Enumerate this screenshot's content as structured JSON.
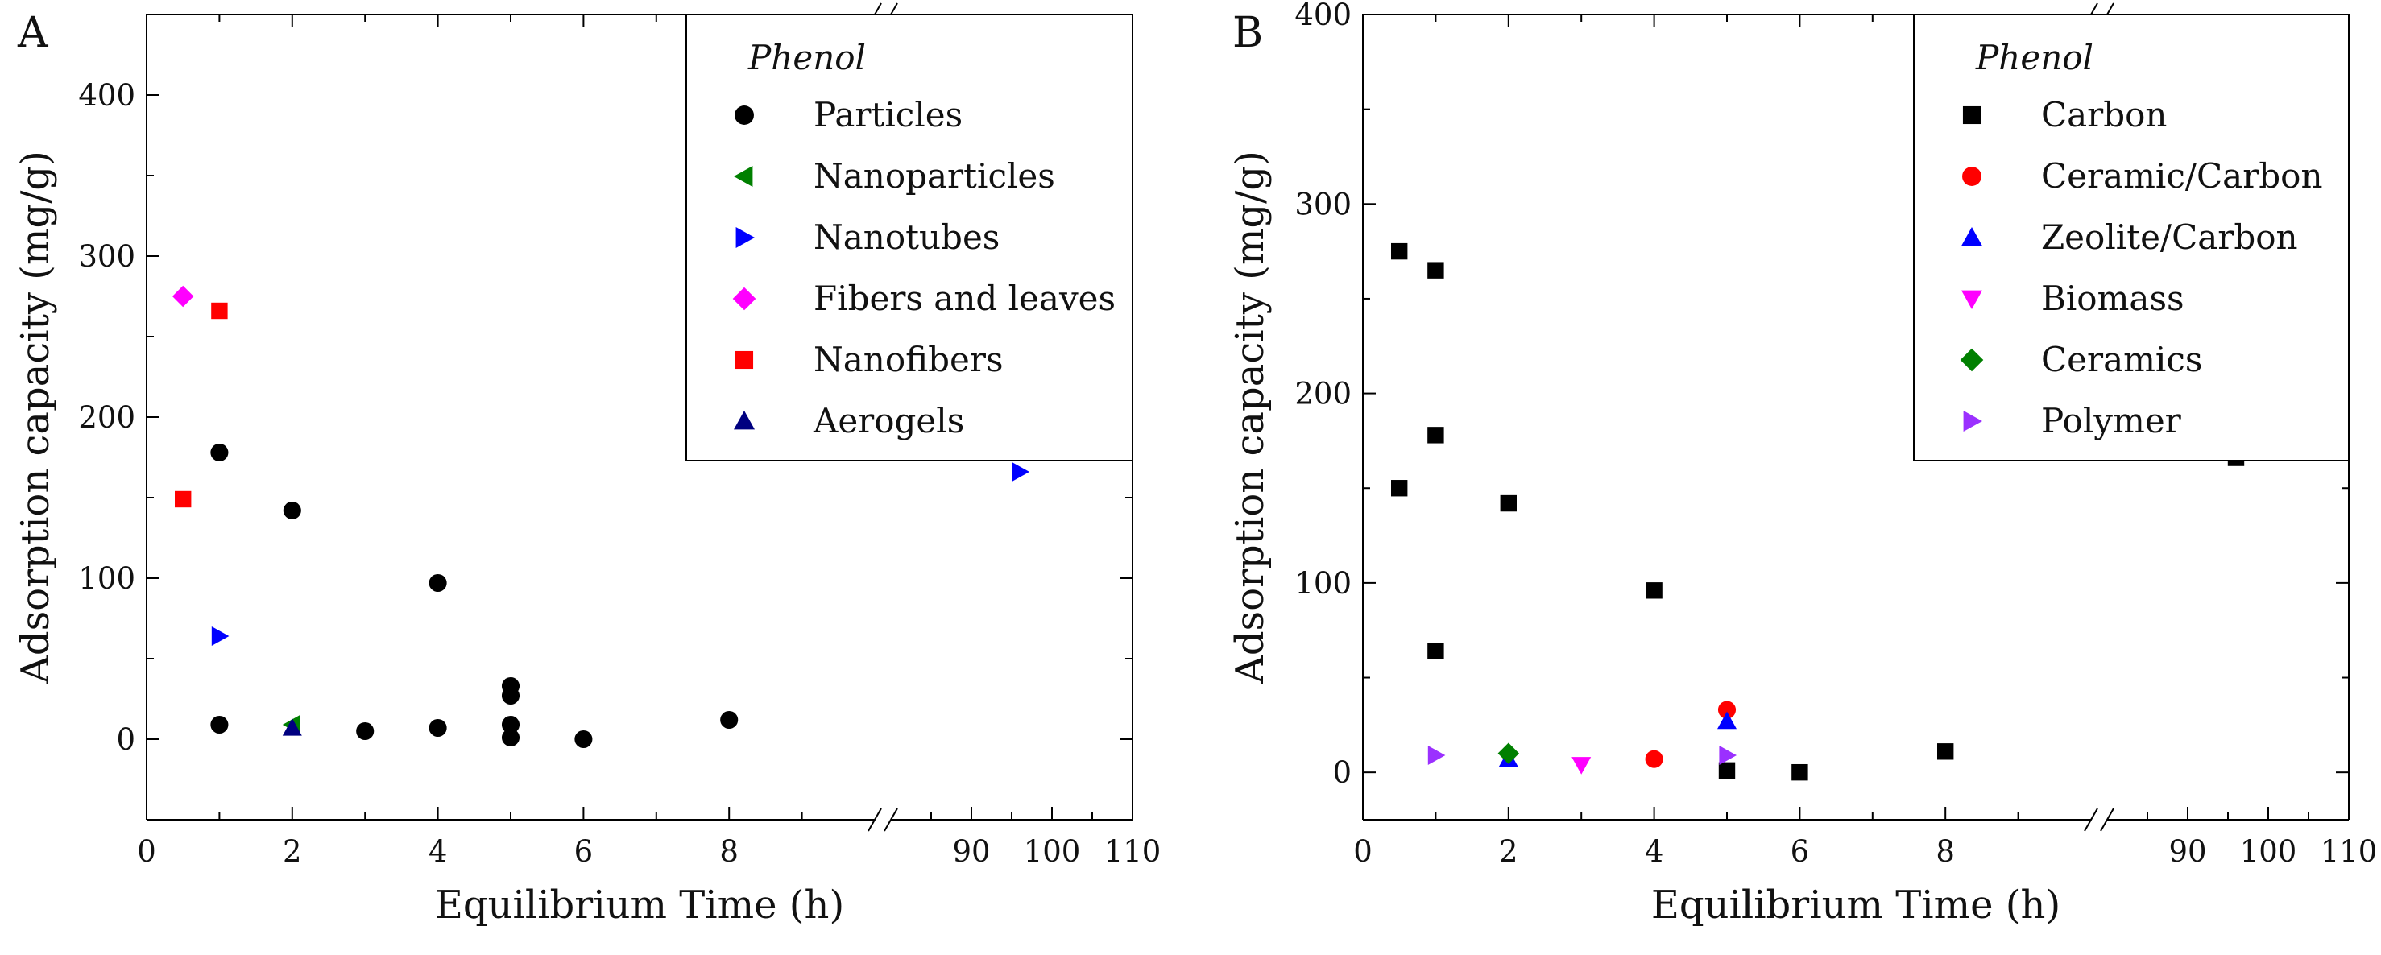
{
  "chart_data": [
    {
      "panel_label": "A",
      "type": "scatter",
      "xlabel": "Equilibrium Time (h)",
      "ylabel": "Adsorption capacity (mg/g)",
      "xlim_segment1": [
        0,
        10
      ],
      "xlim_segment2": [
        80,
        110
      ],
      "ylim": [
        -50,
        450
      ],
      "xticks_segment1": [
        "0",
        "2",
        "4",
        "6",
        "8"
      ],
      "xticks_segment2": [
        "90",
        "100",
        "110"
      ],
      "yticks": [
        "0",
        "100",
        "200",
        "300",
        "400"
      ],
      "legend_title": "Phenol",
      "legend_position": "top-right",
      "series": [
        {
          "name": "Particles",
          "marker": "circle",
          "color": "#000000",
          "points": [
            [
              1,
              178
            ],
            [
              2,
              142
            ],
            [
              4,
              97
            ],
            [
              1,
              9
            ],
            [
              3,
              5
            ],
            [
              4,
              7
            ],
            [
              5,
              33
            ],
            [
              5,
              27
            ],
            [
              5,
              9
            ],
            [
              5,
              1
            ],
            [
              6,
              0
            ],
            [
              8,
              12
            ]
          ]
        },
        {
          "name": "Nanoparticles",
          "marker": "triangle-left",
          "color": "#008000",
          "points": [
            [
              2,
              9
            ]
          ]
        },
        {
          "name": "Nanotubes",
          "marker": "triangle-right",
          "color": "#0000ff",
          "points": [
            [
              1,
              64
            ],
            [
              96,
              166
            ]
          ]
        },
        {
          "name": "Fibers and leaves",
          "marker": "diamond",
          "color": "#ff00ff",
          "points": [
            [
              0.5,
              275
            ]
          ]
        },
        {
          "name": "Nanofibers",
          "marker": "square",
          "color": "#ff0000",
          "points": [
            [
              1,
              266
            ],
            [
              0.5,
              149
            ]
          ]
        },
        {
          "name": "Aerogels",
          "marker": "triangle-up",
          "color": "#000080",
          "points": [
            [
              2,
              7
            ]
          ]
        }
      ]
    },
    {
      "panel_label": "B",
      "type": "scatter",
      "xlabel": "Equilibrium Time (h)",
      "ylabel": "Adsorption capacity (mg/g)",
      "xlim_segment1": [
        0,
        10
      ],
      "xlim_segment2": [
        80,
        110
      ],
      "ylim": [
        -25,
        400
      ],
      "xticks_segment1": [
        "0",
        "2",
        "4",
        "6",
        "8"
      ],
      "xticks_segment2": [
        "90",
        "100",
        "110"
      ],
      "yticks": [
        "0",
        "100",
        "200",
        "300",
        "400"
      ],
      "legend_title": "Phenol",
      "legend_position": "top-right",
      "series": [
        {
          "name": "Carbon",
          "marker": "square",
          "color": "#000000",
          "points": [
            [
              0.5,
              275
            ],
            [
              1,
              265
            ],
            [
              1,
              178
            ],
            [
              0.5,
              150
            ],
            [
              2,
              142
            ],
            [
              4,
              96
            ],
            [
              1,
              64
            ],
            [
              5,
              1
            ],
            [
              6,
              0
            ],
            [
              8,
              11
            ],
            [
              96,
              166
            ]
          ]
        },
        {
          "name": "Ceramic/Carbon",
          "marker": "circle",
          "color": "#ff0000",
          "points": [
            [
              5,
              33
            ],
            [
              4,
              7
            ]
          ]
        },
        {
          "name": "Zeolite/Carbon",
          "marker": "triangle-up",
          "color": "#0000ff",
          "points": [
            [
              5,
              27
            ],
            [
              2,
              7
            ]
          ]
        },
        {
          "name": "Biomass",
          "marker": "triangle-down",
          "color": "#ff00ff",
          "points": [
            [
              3,
              4
            ]
          ]
        },
        {
          "name": "Ceramics",
          "marker": "diamond",
          "color": "#008000",
          "points": [
            [
              2,
              10
            ]
          ]
        },
        {
          "name": "Polymer",
          "marker": "triangle-right",
          "color": "#9b30ff",
          "points": [
            [
              1,
              9
            ],
            [
              5,
              9
            ]
          ]
        }
      ]
    }
  ]
}
